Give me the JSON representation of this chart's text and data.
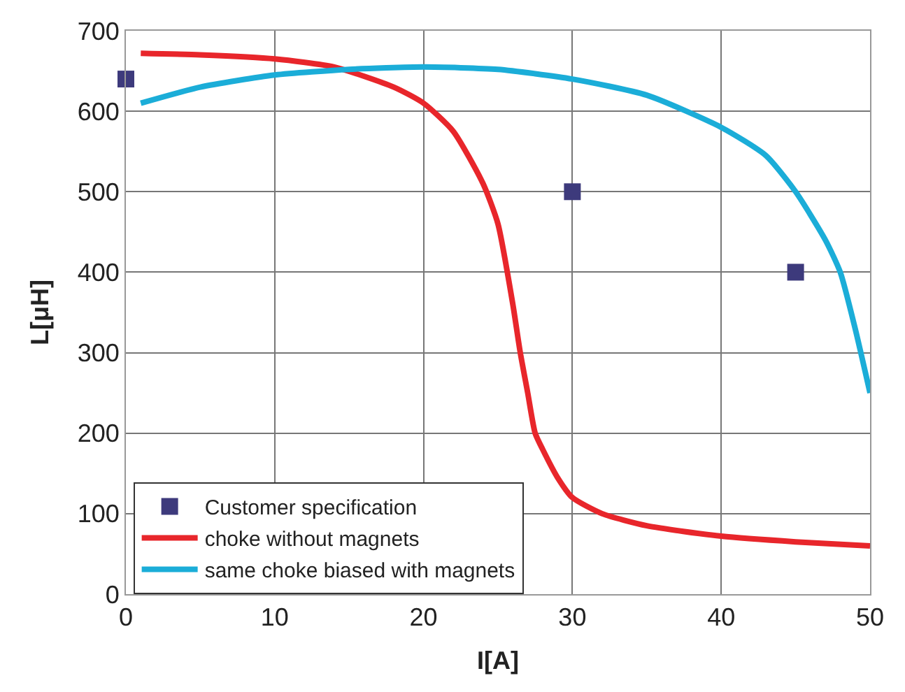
{
  "chart_data": {
    "type": "line",
    "xlabel": "I[A]",
    "ylabel": "L[μH]",
    "xlim": [
      0,
      50
    ],
    "xticks": [
      0,
      10,
      20,
      30,
      40,
      50
    ],
    "ylim": [
      0,
      700
    ],
    "yticks": [
      0,
      100,
      200,
      300,
      400,
      500,
      600,
      700
    ],
    "grid": true,
    "legend": "bottom left",
    "series": [
      {
        "name": "Customer specification",
        "type": "scatter",
        "marker": "square",
        "color": "#3d3a7c",
        "x": [
          0,
          30,
          45
        ],
        "values": [
          640,
          500,
          400
        ]
      },
      {
        "name": "choke without magnets",
        "color": "#e8262b",
        "x": [
          1,
          5,
          10,
          14,
          18,
          20,
          22,
          24,
          25,
          26,
          26.5,
          27,
          27.5,
          28,
          29,
          30,
          32,
          35,
          40,
          45,
          50
        ],
        "values": [
          672,
          670,
          665,
          655,
          630,
          610,
          575,
          510,
          460,
          360,
          300,
          250,
          200,
          180,
          145,
          120,
          100,
          85,
          72,
          65,
          60
        ]
      },
      {
        "name": "same choke biased with magnets",
        "color": "#1badd8",
        "x": [
          1,
          5,
          10,
          15,
          20,
          25,
          30,
          35,
          40,
          43,
          45,
          47,
          48,
          49,
          50
        ],
        "values": [
          610,
          630,
          645,
          652,
          655,
          652,
          640,
          620,
          580,
          545,
          500,
          440,
          400,
          330,
          250
        ]
      }
    ]
  }
}
